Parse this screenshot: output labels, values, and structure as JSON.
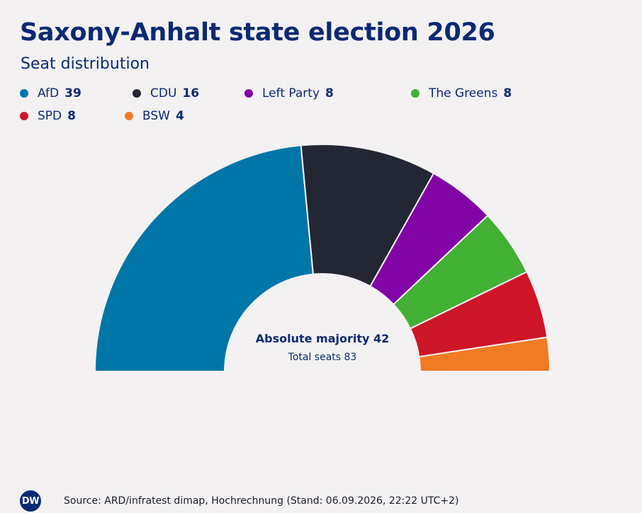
{
  "header": {
    "title": "Saxony-Anhalt state election 2026",
    "subtitle": "Seat distribution"
  },
  "center": {
    "majority": "Absolute majority 42",
    "total": "Total seats 83"
  },
  "footer": {
    "logo_text": "DW",
    "source": "Source: ARD/infratest dimap, Hochrechnung (Stand: 06.09.2026, 22:22 UTC+2)"
  },
  "chart_data": {
    "type": "pie",
    "subtype": "semicircle-parliament",
    "title": "Saxony-Anhalt state election 2026",
    "subtitle": "Seat distribution",
    "categories": [
      "AfD",
      "CDU",
      "Left Party",
      "The Greens",
      "SPD",
      "BSW"
    ],
    "values": [
      39,
      16,
      8,
      8,
      8,
      4
    ],
    "colors": [
      "#0076a8",
      "#232734",
      "#8204a6",
      "#42b034",
      "#ce1628",
      "#f07b23"
    ],
    "total_seats": 83,
    "absolute_majority": 42,
    "legend_placement": "top-left",
    "legend": [
      {
        "name": "AfD",
        "value": "39",
        "color": "#0076a8"
      },
      {
        "name": "CDU",
        "value": "16",
        "color": "#232734"
      },
      {
        "name": "Left Party",
        "value": "8",
        "color": "#8204a6"
      },
      {
        "name": "The Greens",
        "value": "8",
        "color": "#42b034"
      },
      {
        "name": "SPD",
        "value": "8",
        "color": "#ce1628"
      },
      {
        "name": "BSW",
        "value": "4",
        "color": "#f07b23"
      }
    ]
  }
}
